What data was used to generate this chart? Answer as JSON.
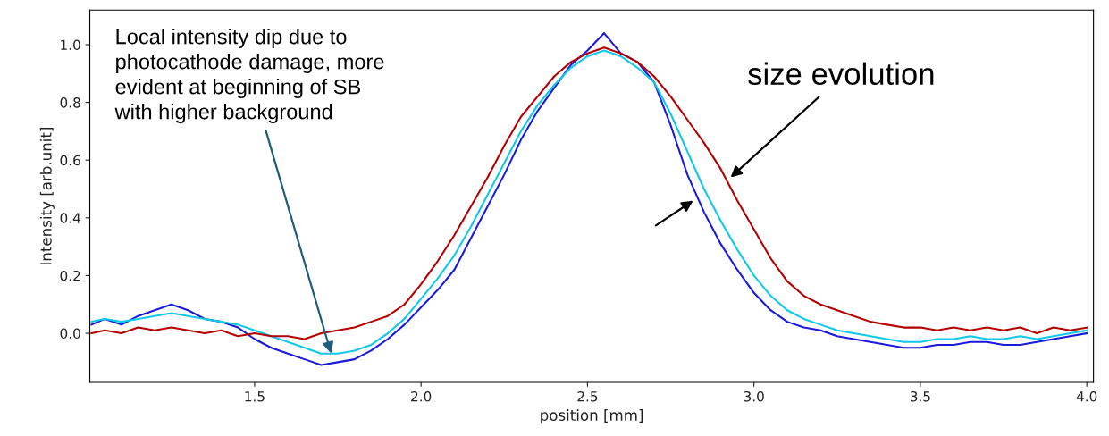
{
  "chart_data": {
    "type": "line",
    "xlabel": "position [mm]",
    "ylabel": "Intensity [arb.unit]",
    "x": [
      1.01,
      1.05,
      1.1,
      1.15,
      1.2,
      1.25,
      1.3,
      1.35,
      1.4,
      1.45,
      1.5,
      1.55,
      1.6,
      1.65,
      1.7,
      1.75,
      1.8,
      1.85,
      1.9,
      1.95,
      2.0,
      2.05,
      2.1,
      2.15,
      2.2,
      2.25,
      2.3,
      2.35,
      2.4,
      2.45,
      2.5,
      2.55,
      2.6,
      2.65,
      2.7,
      2.75,
      2.8,
      2.85,
      2.9,
      2.95,
      3.0,
      3.05,
      3.1,
      3.15,
      3.2,
      3.25,
      3.3,
      3.35,
      3.4,
      3.45,
      3.5,
      3.55,
      3.6,
      3.65,
      3.7,
      3.75,
      3.8,
      3.85,
      3.9,
      3.95,
      4.0
    ],
    "series": [
      {
        "color": "#1a1adc",
        "values": [
          0.03,
          0.05,
          0.03,
          0.06,
          0.08,
          0.1,
          0.08,
          0.05,
          0.04,
          0.02,
          -0.02,
          -0.05,
          -0.07,
          -0.09,
          -0.11,
          -0.1,
          -0.09,
          -0.06,
          -0.02,
          0.03,
          0.09,
          0.15,
          0.22,
          0.33,
          0.44,
          0.55,
          0.67,
          0.77,
          0.85,
          0.93,
          0.98,
          1.04,
          0.97,
          0.94,
          0.87,
          0.72,
          0.55,
          0.42,
          0.31,
          0.22,
          0.14,
          0.08,
          0.04,
          0.02,
          0.01,
          -0.01,
          -0.02,
          -0.03,
          -0.04,
          -0.05,
          -0.05,
          -0.04,
          -0.04,
          -0.03,
          -0.03,
          -0.04,
          -0.04,
          -0.03,
          -0.02,
          -0.01,
          0.0
        ]
      },
      {
        "color": "#10c8e8",
        "values": [
          0.04,
          0.05,
          0.04,
          0.05,
          0.06,
          0.07,
          0.06,
          0.05,
          0.04,
          0.03,
          0.01,
          -0.01,
          -0.03,
          -0.05,
          -0.07,
          -0.07,
          -0.06,
          -0.04,
          0.0,
          0.05,
          0.12,
          0.19,
          0.27,
          0.37,
          0.48,
          0.59,
          0.7,
          0.79,
          0.86,
          0.92,
          0.96,
          0.98,
          0.96,
          0.92,
          0.87,
          0.76,
          0.63,
          0.5,
          0.39,
          0.29,
          0.2,
          0.13,
          0.08,
          0.05,
          0.03,
          0.01,
          0.0,
          -0.01,
          -0.02,
          -0.03,
          -0.03,
          -0.02,
          -0.02,
          -0.01,
          -0.02,
          -0.02,
          -0.01,
          -0.02,
          -0.01,
          0.0,
          0.01
        ]
      },
      {
        "color": "#b40000",
        "values": [
          0.0,
          0.01,
          0.0,
          0.02,
          0.01,
          0.02,
          0.01,
          0.0,
          0.01,
          -0.01,
          0.0,
          -0.01,
          -0.01,
          -0.02,
          0.0,
          0.01,
          0.02,
          0.04,
          0.06,
          0.1,
          0.17,
          0.25,
          0.34,
          0.44,
          0.54,
          0.65,
          0.75,
          0.82,
          0.89,
          0.94,
          0.97,
          0.99,
          0.97,
          0.94,
          0.89,
          0.82,
          0.74,
          0.66,
          0.57,
          0.46,
          0.36,
          0.26,
          0.18,
          0.13,
          0.1,
          0.08,
          0.06,
          0.04,
          0.03,
          0.02,
          0.02,
          0.01,
          0.02,
          0.01,
          0.02,
          0.01,
          0.02,
          0.0,
          0.02,
          0.01,
          0.02
        ]
      }
    ],
    "xlim": [
      1.005,
      4.02
    ],
    "ylim": [
      -0.17,
      1.12
    ],
    "xticks": [
      {
        "value": 1.5,
        "label": "1.5"
      },
      {
        "value": 2.0,
        "label": "2.0"
      },
      {
        "value": 2.5,
        "label": "2.5"
      },
      {
        "value": 3.0,
        "label": "3.0"
      },
      {
        "value": 3.5,
        "label": "3.5"
      },
      {
        "value": 4.0,
        "label": "4.0"
      }
    ],
    "yticks": [
      {
        "value": 0.0,
        "label": "0.0"
      },
      {
        "value": 0.2,
        "label": "0.2"
      },
      {
        "value": 0.4,
        "label": "0.4"
      },
      {
        "value": 0.6,
        "label": "0.6"
      },
      {
        "value": 0.8,
        "label": "0.8"
      },
      {
        "value": 1.0,
        "label": "1.0"
      }
    ],
    "grid": false,
    "legend": false,
    "marker": "none",
    "line_style": "solid",
    "annotations": [
      {
        "text": "Local intensity dip due to\nphotocathode damage, more\nevident at beginning of SB\nwith higher background",
        "x": 1.73,
        "y": -0.07
      },
      {
        "text": "size evolution",
        "x": 2.93,
        "y": 0.54
      }
    ]
  }
}
